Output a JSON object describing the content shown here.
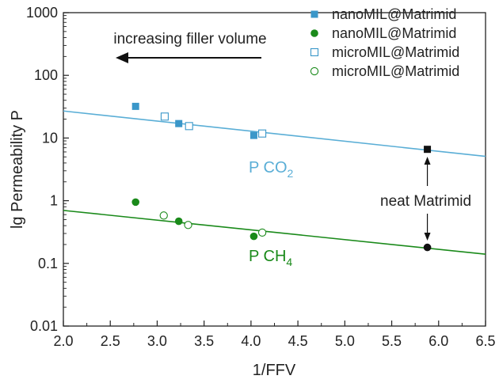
{
  "chart_data": {
    "type": "scatter",
    "xlabel": "1/FFV",
    "ylabel": "lg Permeability P",
    "xlim": [
      2.0,
      6.5
    ],
    "ylim": [
      0.01,
      1000
    ],
    "yscale": "log",
    "grid": false,
    "legend_position": "top-right",
    "x_ticks": [
      "2.0",
      "2.5",
      "3.0",
      "3.5",
      "4.0",
      "4.5",
      "5.0",
      "5.5",
      "6.0",
      "6.5"
    ],
    "y_ticks": [
      "0.01",
      "0.1",
      "1",
      "10",
      "100",
      "1000"
    ],
    "series": [
      {
        "name": "nanoMIL@Matrimid",
        "marker": "square-filled",
        "color": "#3a97c9",
        "points": [
          [
            2.77,
            32
          ],
          [
            3.23,
            17
          ],
          [
            4.03,
            11
          ]
        ]
      },
      {
        "name": "nanoMIL@Matrimid",
        "marker": "circle-filled",
        "color": "#1a8a1a",
        "points": [
          [
            2.77,
            0.95
          ],
          [
            3.23,
            0.47
          ],
          [
            4.03,
            0.27
          ]
        ]
      },
      {
        "name": "microMIL@Matrimid",
        "marker": "square-open",
        "color": "#3a97c9",
        "points": [
          [
            3.08,
            22
          ],
          [
            3.34,
            15.5
          ],
          [
            4.12,
            11.8
          ]
        ]
      },
      {
        "name": "microMIL@Matrimid",
        "marker": "circle-open",
        "color": "#1a8a1a",
        "points": [
          [
            3.07,
            0.58
          ],
          [
            3.33,
            0.41
          ],
          [
            4.12,
            0.31
          ]
        ]
      }
    ],
    "neat_points": [
      {
        "marker": "square-filled",
        "color": "#111111",
        "x": 5.88,
        "y": 6.6
      },
      {
        "marker": "circle-filled",
        "color": "#111111",
        "x": 5.88,
        "y": 0.18
      }
    ],
    "fit_lines": [
      {
        "label_main": "P CO",
        "label_sub": "2",
        "color": "#5aaed6",
        "start": [
          2.0,
          27
        ],
        "end": [
          6.5,
          5.1
        ]
      },
      {
        "label_main": "P CH",
        "label_sub": "4",
        "color": "#1a8a1a",
        "start": [
          2.0,
          0.7
        ],
        "end": [
          6.5,
          0.14
        ]
      }
    ],
    "annotations": {
      "direction_label": "increasing filler volume",
      "neat_label": "neat Matrimid"
    }
  }
}
